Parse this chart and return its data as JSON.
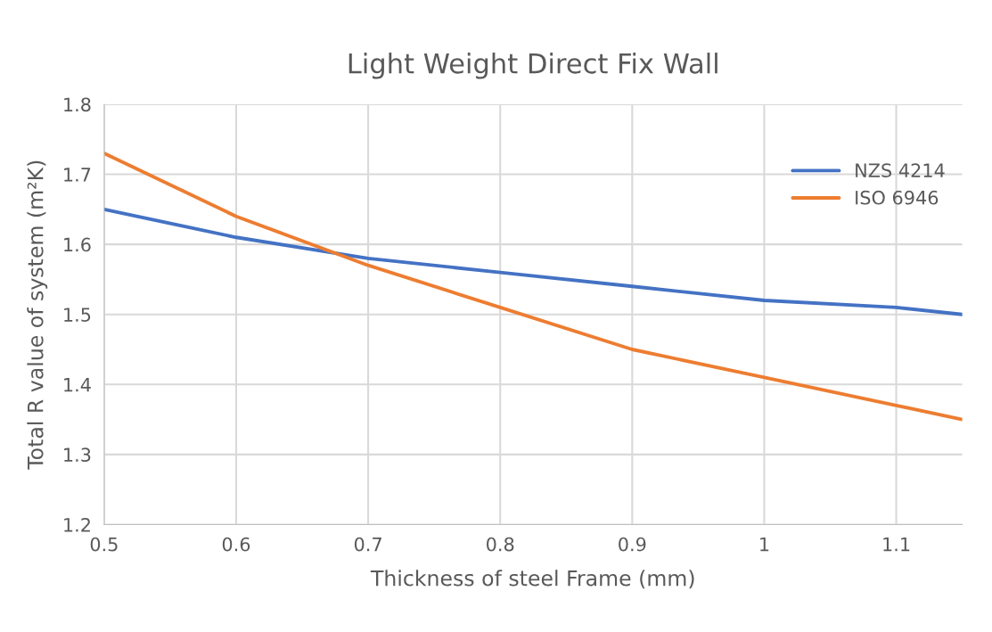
{
  "chart_data": {
    "type": "line",
    "title": "Light Weight Direct Fix Wall",
    "xlabel": "Thickness of steel Frame (mm)",
    "ylabel": "Total R value of system (m²K)",
    "x": [
      0.5,
      0.6,
      0.7,
      0.8,
      0.9,
      1.0,
      1.1,
      1.15
    ],
    "series": [
      {
        "name": "NZS 4214",
        "color": "#4472c4",
        "values": [
          1.65,
          1.61,
          1.58,
          1.56,
          1.54,
          1.52,
          1.51,
          1.5
        ]
      },
      {
        "name": "ISO 6946",
        "color": "#ed7d31",
        "values": [
          1.73,
          1.64,
          1.57,
          1.51,
          1.45,
          1.41,
          1.37,
          1.35
        ]
      }
    ],
    "xlim": [
      0.5,
      1.15
    ],
    "xticks": [
      0.5,
      0.6,
      0.7,
      0.8,
      0.9,
      {
        "value": 1.0,
        "label": "1"
      },
      1.1
    ],
    "ylim": [
      1.2,
      1.8
    ],
    "yticks": [
      1.2,
      1.3,
      1.4,
      1.5,
      1.6,
      1.7,
      1.8
    ],
    "grid": true,
    "legend": "top right",
    "marker": "none",
    "line_style": "solid"
  }
}
